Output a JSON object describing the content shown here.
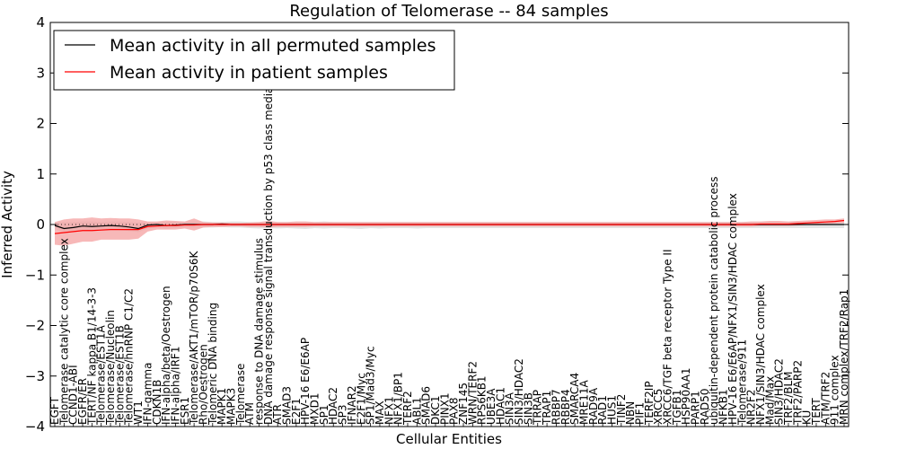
{
  "chart_data": {
    "type": "line",
    "title": "Regulation of Telomerase -- 84 samples",
    "xlabel": "Cellular Entities",
    "ylabel": "Inferred Activity",
    "ylim": [
      -4,
      4
    ],
    "yticks": [
      -4,
      -3,
      -2,
      -1,
      0,
      1,
      2,
      3,
      4
    ],
    "ytick_labels": [
      "−4",
      "−3",
      "−2",
      "−1",
      "0",
      "1",
      "2",
      "3",
      "4"
    ],
    "legend_position": "top-left",
    "categories": [
      "EGFT",
      "Telomerase catalytic core complex",
      "CCND1-ABI",
      "EGFR/ER",
      "TERT/NF kappa B1/14-3-3",
      "Telomerase/EST1A",
      "Telomerase/Nucleolin",
      "Telomerase/EST1B",
      "Telomerase/hnRNP C1/C2",
      "WT1",
      "IFN-gamma",
      "CDKN1B",
      "IFN-alpha/beta/Oestrogen",
      "IFN-alpha/IRF1",
      "ESR1",
      "Telomerase/AKT1/mTOR/p70S6K",
      "Rho/Oestrogen",
      "Telomeric DNA binding",
      "MAPK1",
      "MAPK3",
      "Telomerase",
      "ATM",
      "response to DNA damage stimulus",
      "DNA damage response signal transduction by p53 class mediator",
      "ATR",
      "SMAD3",
      "E2F1",
      "HPV-16 E6/E6AP",
      "MXD1",
      "SP1",
      "HDAC2",
      "SP3",
      "IFNAR2",
      "E2F1/Myc",
      "SP1/Mad3/Myc",
      "MAX",
      "NFX1",
      "NFX1/BP1",
      "TERF2",
      "ABL1",
      "SMAD6",
      "DKC1",
      "PINX1",
      "PAX8",
      "ZNF145",
      "WRN/TERF2",
      "RPS6KB1",
      "UBE3A",
      "HDAC1",
      "SIN3A",
      "SIN3/HDAC2",
      "SIN3B",
      "TRRAP",
      "TRAP1",
      "RBBP7",
      "RBBP4",
      "SMARCA4",
      "MRE11A",
      "RAD9A",
      "RAD1",
      "HUS1",
      "TINF2",
      "NBN",
      "PIF1",
      "TERF2IP",
      "XRCC5",
      "XRCC6/TGF beta receptor Type II",
      "TGFB1",
      "HSP90AA1",
      "PARP1",
      "RAD50",
      "ubiquitin-dependent protein catabolic process",
      "NFKB1",
      "HPV-16 E6/E6AP/NFX1/SIN3/HDAC complex",
      "Telomerase/911",
      "NR2F2",
      "NFX1/SIN3/HDAC complex",
      "Mad/Max",
      "SIN3/HDAC2",
      "TRF2/BLM",
      "TRF2/PARP2",
      "KU",
      "TERT",
      "ATM/TRF2",
      "911 complex",
      "MRN complex/TRF2/Rap1"
    ],
    "series": [
      {
        "name": "Mean activity in all permuted samples",
        "color": "#000000",
        "band_color": "#d9d9d9",
        "values": [
          -0.02,
          -0.08,
          -0.06,
          -0.03,
          -0.04,
          -0.03,
          -0.02,
          -0.03,
          -0.05,
          -0.08,
          -0.01,
          0.0,
          -0.02,
          -0.01,
          0.0,
          0.0,
          0.0,
          0.0,
          0.01,
          0.0,
          0.0,
          0.0,
          0.0,
          0.0,
          0.0,
          0.0,
          0.0,
          0.0,
          0.0,
          0.0,
          0.0,
          0.0,
          0.0,
          0.0,
          0.0,
          0.0,
          0.0,
          0.0,
          0.0,
          0.0,
          0.0,
          0.0,
          0.0,
          0.0,
          0.0,
          0.0,
          0.0,
          0.0,
          0.0,
          0.0,
          0.0,
          0.0,
          0.0,
          0.0,
          0.0,
          0.0,
          0.0,
          0.0,
          0.0,
          0.0,
          0.0,
          0.0,
          0.0,
          0.0,
          0.0,
          0.0,
          0.0,
          0.0,
          0.0,
          0.0,
          0.0,
          0.0,
          0.0,
          0.0,
          0.0,
          0.0,
          0.0,
          0.0,
          0.0,
          0.0,
          0.0,
          0.0,
          0.0,
          0.0,
          0.0,
          0.0
        ],
        "band_upper": [
          0.05,
          0.05,
          0.05,
          0.06,
          0.06,
          0.05,
          0.06,
          0.06,
          0.05,
          0.04,
          0.04,
          0.04,
          0.05,
          0.05,
          0.05,
          0.06,
          0.06,
          0.05,
          0.05,
          0.06,
          0.06,
          0.05,
          0.05,
          0.05,
          0.05,
          0.05,
          0.05,
          0.05,
          0.05,
          0.06,
          0.05,
          0.05,
          0.05,
          0.05,
          0.05,
          0.05,
          0.05,
          0.05,
          0.05,
          0.05,
          0.05,
          0.05,
          0.05,
          0.05,
          0.05,
          0.05,
          0.05,
          0.05,
          0.05,
          0.05,
          0.05,
          0.05,
          0.05,
          0.05,
          0.05,
          0.05,
          0.05,
          0.05,
          0.05,
          0.05,
          0.05,
          0.05,
          0.05,
          0.05,
          0.05,
          0.05,
          0.05,
          0.05,
          0.05,
          0.05,
          0.05,
          0.05,
          0.05,
          0.05,
          0.05,
          0.05,
          0.05,
          0.05,
          0.05,
          0.05,
          0.05,
          0.05,
          0.05,
          0.05,
          0.05,
          0.05
        ],
        "band_lower": [
          -0.1,
          -0.14,
          -0.12,
          -0.1,
          -0.12,
          -0.11,
          -0.1,
          -0.11,
          -0.13,
          -0.15,
          -0.08,
          -0.06,
          -0.08,
          -0.07,
          -0.06,
          -0.06,
          -0.06,
          -0.06,
          -0.05,
          -0.06,
          -0.06,
          -0.07,
          -0.08,
          -0.07,
          -0.08,
          -0.07,
          -0.08,
          -0.09,
          -0.07,
          -0.08,
          -0.07,
          -0.07,
          -0.08,
          -0.09,
          -0.07,
          -0.08,
          -0.07,
          -0.07,
          -0.07,
          -0.08,
          -0.07,
          -0.07,
          -0.07,
          -0.07,
          -0.07,
          -0.07,
          -0.07,
          -0.07,
          -0.07,
          -0.07,
          -0.07,
          -0.07,
          -0.07,
          -0.07,
          -0.07,
          -0.07,
          -0.07,
          -0.07,
          -0.07,
          -0.07,
          -0.07,
          -0.07,
          -0.07,
          -0.07,
          -0.07,
          -0.07,
          -0.07,
          -0.07,
          -0.07,
          -0.07,
          -0.07,
          -0.07,
          -0.07,
          -0.07,
          -0.07,
          -0.07,
          -0.07,
          -0.07,
          -0.07,
          -0.07,
          -0.07,
          -0.07,
          -0.07,
          -0.07,
          -0.07,
          -0.07
        ]
      },
      {
        "name": "Mean activity in patient samples",
        "color": "#ff0000",
        "band_color": "#f4a0a0",
        "values": [
          -0.18,
          -0.16,
          -0.14,
          -0.12,
          -0.12,
          -0.11,
          -0.1,
          -0.1,
          -0.1,
          -0.1,
          -0.04,
          -0.03,
          -0.02,
          -0.02,
          -0.01,
          -0.01,
          0.0,
          0.0,
          0.0,
          0.0,
          0.0,
          0.0,
          0.0,
          0.0,
          0.0,
          0.0,
          0.0,
          0.0,
          0.0,
          0.0,
          0.0,
          0.0,
          0.0,
          0.0,
          0.0,
          0.0,
          0.0,
          0.0,
          0.0,
          0.0,
          0.0,
          0.0,
          0.0,
          0.0,
          0.0,
          0.0,
          0.0,
          0.0,
          0.0,
          0.0,
          0.0,
          0.0,
          0.0,
          0.0,
          0.0,
          0.0,
          0.0,
          0.0,
          0.0,
          0.0,
          0.0,
          0.0,
          0.0,
          0.0,
          0.0,
          0.0,
          0.0,
          0.0,
          0.0,
          0.0,
          0.0,
          0.0,
          0.0,
          0.0,
          0.0,
          0.0,
          0.01,
          0.01,
          0.01,
          0.01,
          0.02,
          0.03,
          0.04,
          0.05,
          0.06,
          0.08
        ],
        "band_upper": [
          0.05,
          0.1,
          0.12,
          0.12,
          0.14,
          0.12,
          0.13,
          0.12,
          0.12,
          0.1,
          0.06,
          0.06,
          0.08,
          0.07,
          0.06,
          0.12,
          0.05,
          0.04,
          0.04,
          0.03,
          0.03,
          0.04,
          0.05,
          0.07,
          0.05,
          0.05,
          0.06,
          0.06,
          0.05,
          0.05,
          0.05,
          0.05,
          0.05,
          0.05,
          0.05,
          0.05,
          0.05,
          0.05,
          0.05,
          0.05,
          0.05,
          0.05,
          0.05,
          0.05,
          0.05,
          0.05,
          0.05,
          0.05,
          0.05,
          0.05,
          0.05,
          0.05,
          0.05,
          0.05,
          0.05,
          0.05,
          0.05,
          0.05,
          0.05,
          0.05,
          0.05,
          0.05,
          0.05,
          0.05,
          0.05,
          0.05,
          0.05,
          0.05,
          0.05,
          0.05,
          0.05,
          0.05,
          0.05,
          0.05,
          0.05,
          0.06,
          0.06,
          0.07,
          0.07,
          0.06,
          0.07,
          0.08,
          0.09,
          0.1,
          0.1,
          0.12
        ],
        "band_lower": [
          -0.4,
          -0.42,
          -0.38,
          -0.34,
          -0.34,
          -0.3,
          -0.3,
          -0.3,
          -0.3,
          -0.28,
          -0.14,
          -0.1,
          -0.1,
          -0.1,
          -0.08,
          -0.12,
          -0.06,
          -0.05,
          -0.05,
          -0.04,
          -0.04,
          -0.05,
          -0.05,
          -0.06,
          -0.05,
          -0.05,
          -0.05,
          -0.05,
          -0.04,
          -0.04,
          -0.04,
          -0.04,
          -0.04,
          -0.04,
          -0.04,
          -0.04,
          -0.04,
          -0.04,
          -0.04,
          -0.04,
          -0.04,
          -0.04,
          -0.04,
          -0.04,
          -0.04,
          -0.04,
          -0.04,
          -0.04,
          -0.04,
          -0.04,
          -0.04,
          -0.04,
          -0.04,
          -0.04,
          -0.04,
          -0.04,
          -0.04,
          -0.04,
          -0.04,
          -0.04,
          -0.04,
          -0.04,
          -0.04,
          -0.04,
          -0.04,
          -0.04,
          -0.04,
          -0.04,
          -0.04,
          -0.04,
          -0.04,
          -0.04,
          -0.04,
          -0.04,
          -0.04,
          -0.04,
          -0.03,
          -0.03,
          -0.03,
          -0.03,
          -0.02,
          -0.01,
          0.0,
          0.01,
          0.02,
          0.03
        ]
      }
    ]
  }
}
